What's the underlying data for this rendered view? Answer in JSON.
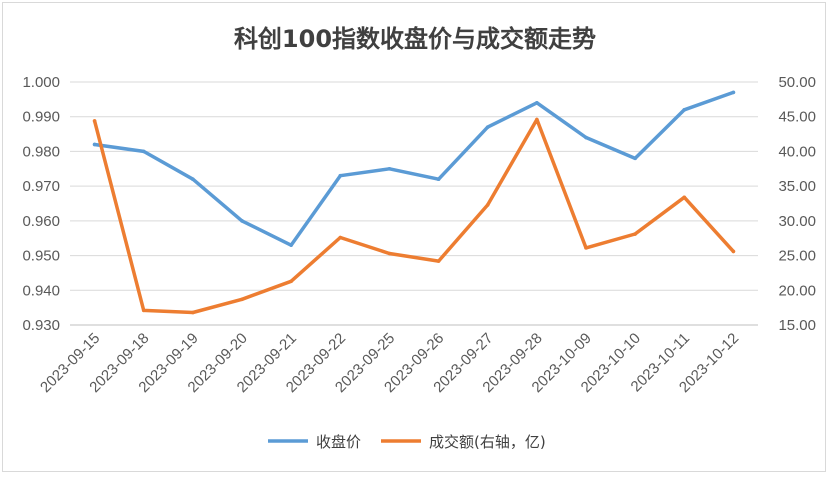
{
  "chart_data": {
    "type": "line",
    "title": "科创100指数收盘价与成交额走势",
    "categories": [
      "2023-09-15",
      "2023-09-18",
      "2023-09-19",
      "2023-09-20",
      "2023-09-21",
      "2023-09-22",
      "2023-09-25",
      "2023-09-26",
      "2023-09-27",
      "2023-09-28",
      "2023-10-09",
      "2023-10-10",
      "2023-10-11",
      "2023-10-12"
    ],
    "left_axis": {
      "ylim": [
        0.93,
        1.0
      ],
      "ticks": [
        "0.930",
        "0.940",
        "0.950",
        "0.960",
        "0.970",
        "0.980",
        "0.990",
        "1.000"
      ]
    },
    "right_axis": {
      "ylim": [
        15,
        50
      ],
      "ticks": [
        "15.00",
        "20.00",
        "25.00",
        "30.00",
        "35.00",
        "40.00",
        "45.00",
        "50.00"
      ]
    },
    "series": [
      {
        "name": "收盘价",
        "axis": "left",
        "color": "#5B9BD5",
        "values": [
          0.982,
          0.98,
          0.972,
          0.96,
          0.953,
          0.973,
          0.975,
          0.972,
          0.987,
          0.994,
          0.984,
          0.978,
          0.992,
          0.997
        ]
      },
      {
        "name": "成交额(右轴，亿)",
        "axis": "right",
        "color": "#ED7D31",
        "values": [
          44.4,
          17.1,
          16.8,
          18.7,
          21.3,
          27.6,
          25.3,
          24.2,
          32.3,
          44.6,
          26.1,
          28.1,
          33.4,
          25.6
        ]
      }
    ],
    "grid": true,
    "legend": "bottom"
  }
}
